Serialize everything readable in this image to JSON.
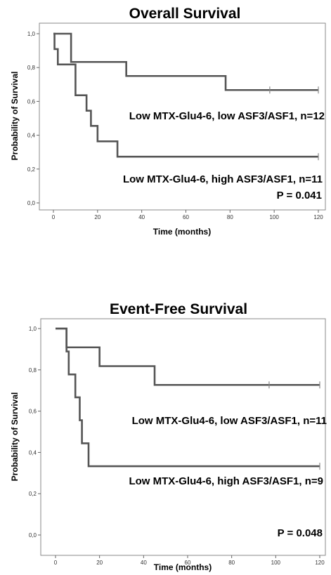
{
  "chart_data": [
    {
      "type": "line",
      "subtype": "kaplan-meier",
      "title": "Overall Survival",
      "xlabel": "Time (months)",
      "ylabel": "Probability of Survival",
      "xlim": [
        0,
        120
      ],
      "ylim": [
        0,
        1.0
      ],
      "xticks": [
        "0",
        "20",
        "40",
        "60",
        "80",
        "100",
        "120"
      ],
      "yticks": [
        "0,0",
        "0,2",
        "0,4",
        "0,6",
        "0,8",
        "1,0"
      ],
      "p_value": "P = 0.041",
      "grid": false,
      "series": [
        {
          "name": "Low MTX-Glu4-6, low ASF3/ASF1, n=12",
          "color": "#555555",
          "steps": [
            [
              0,
              1.0
            ],
            [
              8,
              0.833
            ],
            [
              33,
              0.75
            ],
            [
              78,
              0.667
            ],
            [
              120,
              0.667
            ]
          ],
          "censored": [
            [
              98,
              0.667
            ],
            [
              120,
              0.667
            ]
          ]
        },
        {
          "name": "Low MTX-Glu4-6, high ASF3/ASF1, n=11",
          "color": "#555555",
          "steps": [
            [
              0,
              1.0
            ],
            [
              0.5,
              0.909
            ],
            [
              2,
              0.818
            ],
            [
              10,
              0.636
            ],
            [
              15,
              0.545
            ],
            [
              17,
              0.455
            ],
            [
              20,
              0.364
            ],
            [
              29,
              0.273
            ],
            [
              120,
              0.273
            ]
          ],
          "censored": [
            [
              120,
              0.273
            ]
          ]
        }
      ]
    },
    {
      "type": "line",
      "subtype": "kaplan-meier",
      "title": "Event-Free Survival",
      "xlabel": "Time (months)",
      "ylabel": "Probability of Survival",
      "xlim": [
        0,
        120
      ],
      "ylim": [
        0,
        1.0
      ],
      "xticks": [
        "0",
        "20",
        "40",
        "60",
        "80",
        "100",
        "120"
      ],
      "yticks": [
        "0,0",
        "0,2",
        "0,4",
        "0,6",
        "0,8",
        "1,0"
      ],
      "p_value": "P = 0.048",
      "grid": false,
      "series": [
        {
          "name": "Low MTX-Glu4-6, low ASF3/ASF1, n=11",
          "color": "#555555",
          "steps": [
            [
              0,
              1.0
            ],
            [
              5,
              0.909
            ],
            [
              20,
              0.818
            ],
            [
              45,
              0.727
            ],
            [
              120,
              0.727
            ]
          ],
          "censored": [
            [
              97,
              0.727
            ],
            [
              120,
              0.727
            ]
          ]
        },
        {
          "name": "Low MTX-Glu4-6, high ASF3/ASF1, n=9",
          "color": "#555555",
          "steps": [
            [
              0,
              1.0
            ],
            [
              5,
              0.889
            ],
            [
              6,
              0.778
            ],
            [
              9,
              0.667
            ],
            [
              11,
              0.556
            ],
            [
              12,
              0.444
            ],
            [
              15,
              0.333
            ],
            [
              120,
              0.333
            ]
          ],
          "censored": [
            [
              120,
              0.333
            ]
          ]
        }
      ]
    }
  ]
}
